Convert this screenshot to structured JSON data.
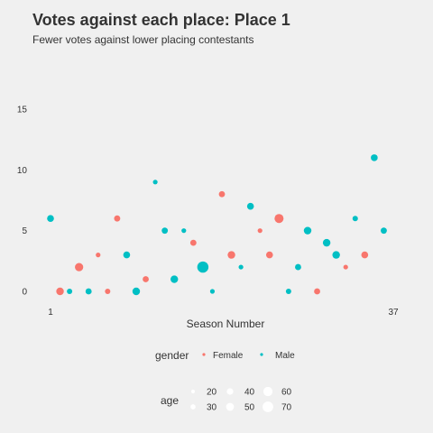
{
  "chart_data": {
    "type": "scatter",
    "title": "Votes against each place: Place 1",
    "subtitle": "Fewer votes against lower placing contestants",
    "xlabel": "Season Number",
    "ylabel": "",
    "x_ticks": [
      "1",
      "37"
    ],
    "xlim": [
      1,
      37
    ],
    "y_ticks": [
      0,
      5,
      10,
      15
    ],
    "ylim": [
      0,
      15
    ],
    "grid": false,
    "legend_position": "bottom",
    "color_legend": {
      "title": "gender",
      "entries": [
        {
          "label": "Female",
          "color": "#F8766D"
        },
        {
          "label": "Male",
          "color": "#00BFC4"
        }
      ]
    },
    "size_legend": {
      "title": "age",
      "entries": [
        {
          "label": "20",
          "value": 20
        },
        {
          "label": "30",
          "value": 30
        },
        {
          "label": "40",
          "value": 40
        },
        {
          "label": "50",
          "value": 50
        },
        {
          "label": "60",
          "value": 60
        },
        {
          "label": "70",
          "value": 70
        }
      ]
    },
    "points": [
      {
        "season": 1,
        "votes": 6,
        "gender": "Male",
        "age": 40
      },
      {
        "season": 2,
        "votes": 0,
        "gender": "Female",
        "age": 45
      },
      {
        "season": 3,
        "votes": 0,
        "gender": "Male",
        "age": 30
      },
      {
        "season": 4,
        "votes": 2,
        "gender": "Female",
        "age": 50
      },
      {
        "season": 5,
        "votes": 0,
        "gender": "Male",
        "age": 35
      },
      {
        "season": 6,
        "votes": 3,
        "gender": "Female",
        "age": 25
      },
      {
        "season": 7,
        "votes": 0,
        "gender": "Female",
        "age": 30
      },
      {
        "season": 8,
        "votes": 6,
        "gender": "Female",
        "age": 35
      },
      {
        "season": 9,
        "votes": 3,
        "gender": "Male",
        "age": 40
      },
      {
        "season": 10,
        "votes": 0,
        "gender": "Male",
        "age": 45
      },
      {
        "season": 11,
        "votes": 1,
        "gender": "Female",
        "age": 35
      },
      {
        "season": 12,
        "votes": 9,
        "gender": "Male",
        "age": 25
      },
      {
        "season": 13,
        "votes": 5,
        "gender": "Male",
        "age": 35
      },
      {
        "season": 14,
        "votes": 1,
        "gender": "Male",
        "age": 45
      },
      {
        "season": 15,
        "votes": 5,
        "gender": "Male",
        "age": 25
      },
      {
        "season": 16,
        "votes": 4,
        "gender": "Female",
        "age": 35
      },
      {
        "season": 17,
        "votes": 2,
        "gender": "Male",
        "age": 70
      },
      {
        "season": 18,
        "votes": 0,
        "gender": "Male",
        "age": 25
      },
      {
        "season": 19,
        "votes": 8,
        "gender": "Female",
        "age": 35
      },
      {
        "season": 20,
        "votes": 3,
        "gender": "Female",
        "age": 45
      },
      {
        "season": 21,
        "votes": 2,
        "gender": "Male",
        "age": 25
      },
      {
        "season": 22,
        "votes": 7,
        "gender": "Male",
        "age": 40
      },
      {
        "season": 23,
        "votes": 5,
        "gender": "Female",
        "age": 25
      },
      {
        "season": 24,
        "votes": 3,
        "gender": "Female",
        "age": 40
      },
      {
        "season": 25,
        "votes": 6,
        "gender": "Female",
        "age": 55
      },
      {
        "season": 26,
        "votes": 0,
        "gender": "Male",
        "age": 30
      },
      {
        "season": 27,
        "votes": 2,
        "gender": "Male",
        "age": 35
      },
      {
        "season": 28,
        "votes": 5,
        "gender": "Male",
        "age": 45
      },
      {
        "season": 29,
        "votes": 0,
        "gender": "Female",
        "age": 35
      },
      {
        "season": 30,
        "votes": 4,
        "gender": "Male",
        "age": 45
      },
      {
        "season": 31,
        "votes": 3,
        "gender": "Male",
        "age": 45
      },
      {
        "season": 32,
        "votes": 2,
        "gender": "Female",
        "age": 25
      },
      {
        "season": 33,
        "votes": 6,
        "gender": "Male",
        "age": 30
      },
      {
        "season": 34,
        "votes": 3,
        "gender": "Female",
        "age": 40
      },
      {
        "season": 35,
        "votes": 11,
        "gender": "Male",
        "age": 40
      },
      {
        "season": 36,
        "votes": 5,
        "gender": "Male",
        "age": 35
      }
    ]
  }
}
